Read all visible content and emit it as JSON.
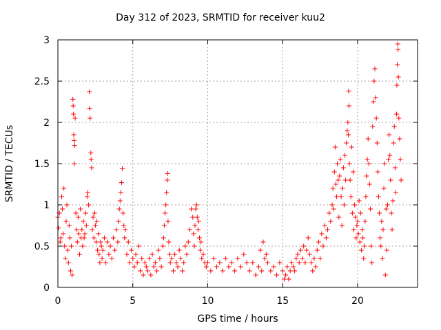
{
  "chart_data": {
    "type": "scatter",
    "title": "Day 312 of 2023, SRMTID for receiver kuu2",
    "xlabel": "GPS time / hours",
    "ylabel": "SRMTID / TECUs",
    "xlim": [
      0,
      24
    ],
    "ylim": [
      0,
      3
    ],
    "xticks": [
      0,
      5,
      10,
      15,
      20
    ],
    "yticks": [
      0,
      0.5,
      1,
      1.5,
      2,
      2.5,
      3
    ],
    "xtick_labels": [
      "0",
      "5",
      "10",
      "15",
      "20"
    ],
    "ytick_labels": [
      "0",
      "0.5",
      "1",
      "1.5",
      "2",
      "2.5",
      "3"
    ],
    "grid": true,
    "marker": "+",
    "series": [
      {
        "name": "SRMTID",
        "color": "#ff0000",
        "points": [
          [
            0.0,
            0.85
          ],
          [
            0.05,
            0.72
          ],
          [
            0.1,
            0.9
          ],
          [
            0.15,
            0.55
          ],
          [
            0.2,
            0.6
          ],
          [
            0.25,
            1.1
          ],
          [
            0.3,
            0.95
          ],
          [
            0.35,
            0.65
          ],
          [
            0.4,
            1.2
          ],
          [
            0.45,
            0.5
          ],
          [
            0.5,
            0.35
          ],
          [
            0.55,
            0.8
          ],
          [
            0.6,
            1.0
          ],
          [
            0.65,
            0.45
          ],
          [
            0.7,
            0.3
          ],
          [
            0.75,
            0.75
          ],
          [
            0.8,
            0.6
          ],
          [
            0.85,
            0.2
          ],
          [
            0.9,
            0.5
          ],
          [
            0.95,
            0.15
          ],
          [
            1.0,
            2.28
          ],
          [
            1.02,
            2.2
          ],
          [
            1.04,
            2.1
          ],
          [
            1.06,
            1.85
          ],
          [
            1.08,
            1.78
          ],
          [
            1.1,
            1.5
          ],
          [
            1.12,
            1.72
          ],
          [
            1.15,
            2.05
          ],
          [
            1.2,
            0.9
          ],
          [
            1.25,
            0.7
          ],
          [
            1.3,
            0.55
          ],
          [
            1.35,
            0.85
          ],
          [
            1.4,
            0.65
          ],
          [
            1.45,
            0.4
          ],
          [
            1.5,
            0.95
          ],
          [
            1.55,
            0.6
          ],
          [
            1.6,
            0.7
          ],
          [
            1.65,
            0.5
          ],
          [
            1.7,
            0.8
          ],
          [
            1.75,
            0.6
          ],
          [
            1.8,
            0.65
          ],
          [
            1.85,
            0.9
          ],
          [
            1.9,
            0.75
          ],
          [
            1.95,
            1.1
          ],
          [
            2.0,
            1.15
          ],
          [
            2.05,
            1.0
          ],
          [
            2.1,
            2.37
          ],
          [
            2.12,
            2.17
          ],
          [
            2.15,
            2.05
          ],
          [
            2.2,
            1.63
          ],
          [
            2.22,
            1.55
          ],
          [
            2.25,
            1.45
          ],
          [
            2.3,
            0.7
          ],
          [
            2.35,
            0.85
          ],
          [
            2.4,
            0.6
          ],
          [
            2.45,
            0.9
          ],
          [
            2.5,
            0.75
          ],
          [
            2.55,
            0.55
          ],
          [
            2.6,
            0.8
          ],
          [
            2.65,
            0.45
          ],
          [
            2.7,
            0.65
          ],
          [
            2.75,
            0.4
          ],
          [
            2.8,
            0.3
          ],
          [
            2.85,
            0.55
          ],
          [
            2.9,
            0.5
          ],
          [
            2.95,
            0.35
          ],
          [
            3.0,
            0.45
          ],
          [
            3.1,
            0.6
          ],
          [
            3.2,
            0.3
          ],
          [
            3.3,
            0.55
          ],
          [
            3.4,
            0.4
          ],
          [
            3.5,
            0.5
          ],
          [
            3.6,
            0.35
          ],
          [
            3.7,
            0.6
          ],
          [
            3.8,
            0.45
          ],
          [
            3.9,
            0.7
          ],
          [
            4.0,
            0.55
          ],
          [
            4.05,
            0.8
          ],
          [
            4.1,
            0.95
          ],
          [
            4.15,
            1.05
          ],
          [
            4.2,
            1.15
          ],
          [
            4.25,
            1.27
          ],
          [
            4.3,
            1.44
          ],
          [
            4.35,
            0.9
          ],
          [
            4.4,
            0.75
          ],
          [
            4.45,
            0.6
          ],
          [
            4.5,
            0.7
          ],
          [
            4.6,
            0.4
          ],
          [
            4.7,
            0.55
          ],
          [
            4.8,
            0.3
          ],
          [
            4.9,
            0.45
          ],
          [
            5.0,
            0.35
          ],
          [
            5.1,
            0.25
          ],
          [
            5.2,
            0.4
          ],
          [
            5.3,
            0.3
          ],
          [
            5.4,
            0.5
          ],
          [
            5.5,
            0.2
          ],
          [
            5.6,
            0.35
          ],
          [
            5.7,
            0.15
          ],
          [
            5.8,
            0.3
          ],
          [
            5.9,
            0.25
          ],
          [
            6.0,
            0.2
          ],
          [
            6.1,
            0.35
          ],
          [
            6.2,
            0.15
          ],
          [
            6.3,
            0.4
          ],
          [
            6.4,
            0.25
          ],
          [
            6.5,
            0.3
          ],
          [
            6.6,
            0.2
          ],
          [
            6.7,
            0.45
          ],
          [
            6.8,
            0.35
          ],
          [
            6.9,
            0.25
          ],
          [
            7.0,
            0.5
          ],
          [
            7.05,
            0.6
          ],
          [
            7.1,
            0.75
          ],
          [
            7.15,
            0.9
          ],
          [
            7.2,
            1.0
          ],
          [
            7.25,
            1.15
          ],
          [
            7.3,
            1.3
          ],
          [
            7.32,
            1.38
          ],
          [
            7.35,
            0.8
          ],
          [
            7.4,
            0.55
          ],
          [
            7.45,
            0.4
          ],
          [
            7.5,
            0.3
          ],
          [
            7.6,
            0.35
          ],
          [
            7.7,
            0.2
          ],
          [
            7.8,
            0.4
          ],
          [
            7.9,
            0.3
          ],
          [
            8.0,
            0.25
          ],
          [
            8.1,
            0.45
          ],
          [
            8.2,
            0.35
          ],
          [
            8.3,
            0.2
          ],
          [
            8.4,
            0.3
          ],
          [
            8.5,
            0.5
          ],
          [
            8.6,
            0.4
          ],
          [
            8.7,
            0.55
          ],
          [
            8.8,
            0.7
          ],
          [
            8.9,
            0.95
          ],
          [
            9.0,
            0.85
          ],
          [
            9.05,
            0.65
          ],
          [
            9.1,
            0.5
          ],
          [
            9.15,
            0.75
          ],
          [
            9.2,
            0.95
          ],
          [
            9.25,
            1.0
          ],
          [
            9.3,
            0.85
          ],
          [
            9.35,
            0.7
          ],
          [
            9.4,
            0.8
          ],
          [
            9.45,
            0.6
          ],
          [
            9.5,
            0.45
          ],
          [
            9.55,
            0.55
          ],
          [
            9.6,
            0.35
          ],
          [
            9.7,
            0.4
          ],
          [
            9.8,
            0.3
          ],
          [
            9.9,
            0.25
          ],
          [
            10.0,
            0.3
          ],
          [
            10.2,
            0.2
          ],
          [
            10.4,
            0.35
          ],
          [
            10.6,
            0.25
          ],
          [
            10.8,
            0.3
          ],
          [
            11.0,
            0.2
          ],
          [
            11.2,
            0.35
          ],
          [
            11.4,
            0.25
          ],
          [
            11.6,
            0.3
          ],
          [
            11.8,
            0.2
          ],
          [
            12.0,
            0.35
          ],
          [
            12.2,
            0.25
          ],
          [
            12.4,
            0.4
          ],
          [
            12.6,
            0.3
          ],
          [
            12.8,
            0.2
          ],
          [
            13.0,
            0.3
          ],
          [
            13.2,
            0.15
          ],
          [
            13.4,
            0.25
          ],
          [
            13.6,
            0.2
          ],
          [
            13.8,
            0.35
          ],
          [
            13.5,
            0.45
          ],
          [
            13.7,
            0.55
          ],
          [
            13.9,
            0.4
          ],
          [
            14.0,
            0.3
          ],
          [
            14.2,
            0.2
          ],
          [
            14.4,
            0.25
          ],
          [
            14.6,
            0.15
          ],
          [
            14.8,
            0.3
          ],
          [
            15.0,
            0.2
          ],
          [
            15.1,
            0.1
          ],
          [
            15.2,
            0.15
          ],
          [
            15.3,
            0.25
          ],
          [
            15.4,
            0.1
          ],
          [
            15.5,
            0.2
          ],
          [
            15.6,
            0.3
          ],
          [
            15.7,
            0.25
          ],
          [
            15.8,
            0.2
          ],
          [
            15.9,
            0.35
          ],
          [
            16.0,
            0.4
          ],
          [
            16.1,
            0.3
          ],
          [
            16.2,
            0.45
          ],
          [
            16.3,
            0.35
          ],
          [
            16.4,
            0.5
          ],
          [
            16.5,
            0.3
          ],
          [
            16.6,
            0.45
          ],
          [
            16.7,
            0.6
          ],
          [
            16.8,
            0.4
          ],
          [
            16.9,
            0.3
          ],
          [
            17.0,
            0.2
          ],
          [
            17.1,
            0.35
          ],
          [
            17.2,
            0.25
          ],
          [
            17.3,
            0.45
          ],
          [
            17.4,
            0.55
          ],
          [
            17.5,
            0.35
          ],
          [
            17.6,
            0.65
          ],
          [
            17.7,
            0.5
          ],
          [
            17.8,
            0.75
          ],
          [
            17.9,
            0.6
          ],
          [
            18.0,
            0.7
          ],
          [
            18.1,
            0.9
          ],
          [
            18.2,
            0.8
          ],
          [
            18.3,
            1.0
          ],
          [
            18.35,
            1.2
          ],
          [
            18.4,
            0.95
          ],
          [
            18.45,
            1.4
          ],
          [
            18.5,
            1.7
          ],
          [
            18.55,
            1.25
          ],
          [
            18.6,
            1.1
          ],
          [
            18.65,
            1.5
          ],
          [
            18.7,
            1.3
          ],
          [
            18.75,
            0.85
          ],
          [
            18.8,
            1.35
          ],
          [
            18.85,
            1.55
          ],
          [
            18.9,
            1.1
          ],
          [
            18.95,
            0.75
          ],
          [
            19.0,
            1.2
          ],
          [
            19.05,
            1.45
          ],
          [
            19.1,
            1.0
          ],
          [
            19.15,
            1.6
          ],
          [
            19.2,
            1.3
          ],
          [
            19.25,
            1.75
          ],
          [
            19.3,
            1.9
          ],
          [
            19.35,
            2.0
          ],
          [
            19.38,
            1.85
          ],
          [
            19.4,
            2.38
          ],
          [
            19.42,
            2.2
          ],
          [
            19.45,
            1.5
          ],
          [
            19.5,
            1.3
          ],
          [
            19.55,
            1.1
          ],
          [
            19.6,
            1.7
          ],
          [
            19.65,
            0.9
          ],
          [
            19.7,
            1.4
          ],
          [
            19.75,
            0.7
          ],
          [
            19.8,
            1.0
          ],
          [
            19.85,
            0.85
          ],
          [
            19.9,
            0.6
          ],
          [
            19.95,
            0.75
          ],
          [
            20.0,
            0.8
          ],
          [
            20.05,
            0.65
          ],
          [
            20.1,
            1.05
          ],
          [
            20.15,
            0.55
          ],
          [
            20.2,
            0.9
          ],
          [
            20.25,
            0.45
          ],
          [
            20.3,
            0.7
          ],
          [
            20.35,
            0.6
          ],
          [
            20.4,
            0.35
          ],
          [
            20.45,
            0.5
          ],
          [
            20.5,
            0.8
          ],
          [
            20.55,
            1.1
          ],
          [
            20.6,
            1.35
          ],
          [
            20.65,
            1.55
          ],
          [
            20.7,
            1.8
          ],
          [
            20.75,
            1.5
          ],
          [
            20.8,
            1.25
          ],
          [
            20.85,
            0.95
          ],
          [
            20.9,
            0.5
          ],
          [
            20.95,
            0.3
          ],
          [
            21.0,
            1.95
          ],
          [
            21.05,
            2.25
          ],
          [
            21.1,
            2.5
          ],
          [
            21.15,
            2.65
          ],
          [
            21.2,
            2.3
          ],
          [
            21.25,
            2.05
          ],
          [
            21.3,
            1.75
          ],
          [
            21.35,
            1.4
          ],
          [
            21.4,
            1.1
          ],
          [
            21.45,
            0.9
          ],
          [
            21.5,
            0.6
          ],
          [
            21.55,
            0.5
          ],
          [
            21.6,
            0.8
          ],
          [
            21.65,
            0.35
          ],
          [
            21.7,
            0.7
          ],
          [
            21.75,
            1.2
          ],
          [
            21.8,
            1.5
          ],
          [
            21.85,
            0.15
          ],
          [
            21.9,
            0.95
          ],
          [
            21.95,
            0.45
          ],
          [
            22.0,
            1.0
          ],
          [
            22.05,
            1.55
          ],
          [
            22.1,
            1.85
          ],
          [
            22.15,
            1.6
          ],
          [
            22.2,
            1.3
          ],
          [
            22.25,
            0.9
          ],
          [
            22.3,
            0.7
          ],
          [
            22.35,
            1.05
          ],
          [
            22.4,
            1.75
          ],
          [
            22.45,
            1.95
          ],
          [
            22.5,
            1.45
          ],
          [
            22.55,
            1.15
          ],
          [
            22.6,
            2.1
          ],
          [
            22.62,
            2.45
          ],
          [
            22.65,
            2.7
          ],
          [
            22.68,
            2.95
          ],
          [
            22.7,
            2.88
          ],
          [
            22.72,
            2.55
          ],
          [
            22.75,
            2.05
          ],
          [
            22.8,
            1.8
          ],
          [
            22.85,
            1.55
          ],
          [
            22.9,
            1.3
          ]
        ]
      }
    ]
  }
}
